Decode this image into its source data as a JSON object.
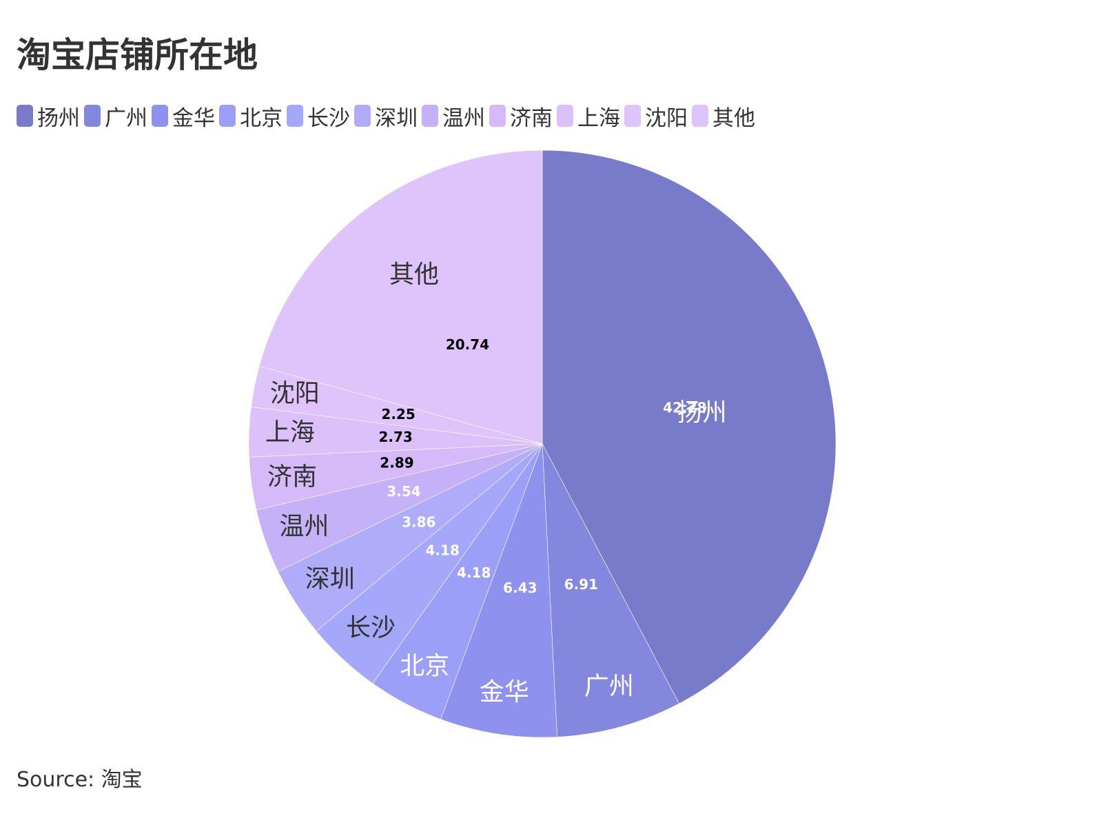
{
  "title": "淘宝店铺所在地",
  "source": "Source: 淘宝",
  "chart_data": {
    "type": "pie",
    "title": "淘宝店铺所在地",
    "legend_position": "top-left",
    "categories": [
      "扬州",
      "广州",
      "金华",
      "北京",
      "长沙",
      "深圳",
      "温州",
      "济南",
      "上海",
      "沈阳",
      "其他"
    ],
    "values": [
      42.28,
      6.91,
      6.43,
      4.18,
      4.18,
      3.86,
      3.54,
      2.89,
      2.73,
      2.25,
      20.74
    ],
    "value_labels": [
      "42.28",
      "6.91",
      "6.43",
      "4.18",
      "4.18",
      "3.86",
      "3.54",
      "2.89",
      "2.73",
      "2.25",
      "20.74"
    ],
    "colors": [
      "#787bc9",
      "#8387de",
      "#8e92ee",
      "#9b9ff8",
      "#a5a7fb",
      "#b0acfa",
      "#c5b1f7",
      "#d6b9f9",
      "#dcc0fa",
      "#dfc4fb",
      "#dfc4fc"
    ],
    "category_label_colors": [
      "#ffffff",
      "#ffffff",
      "#ffffff",
      "#ffffff",
      "#333333",
      "#333333",
      "#333333",
      "#333333",
      "#333333",
      "#333333",
      "#333333"
    ],
    "value_label_colors": [
      "#ffffff",
      "#ffffff",
      "#ffffff",
      "#ffffff",
      "#ffffff",
      "#ffffff",
      "#ffffff",
      "#000000",
      "#000000",
      "#000000",
      "#000000"
    ]
  }
}
